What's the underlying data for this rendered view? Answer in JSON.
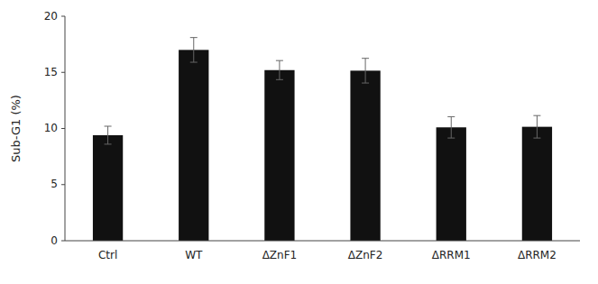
{
  "chart_data": {
    "type": "bar",
    "categories": [
      "Ctrl",
      "WT",
      "ΔZnF1",
      "ΔZnF2",
      "ΔRRM1",
      "ΔRRM2"
    ],
    "values": [
      9.4,
      17.0,
      15.2,
      15.15,
      10.1,
      10.15
    ],
    "errors": [
      0.8,
      1.1,
      0.85,
      1.1,
      0.95,
      1.0
    ],
    "color": "#111111",
    "ylabel": "Sub-G1 (%)",
    "ylim": [
      0,
      20
    ],
    "yticks": [
      0,
      5,
      10,
      15,
      20
    ],
    "grid": false
  }
}
